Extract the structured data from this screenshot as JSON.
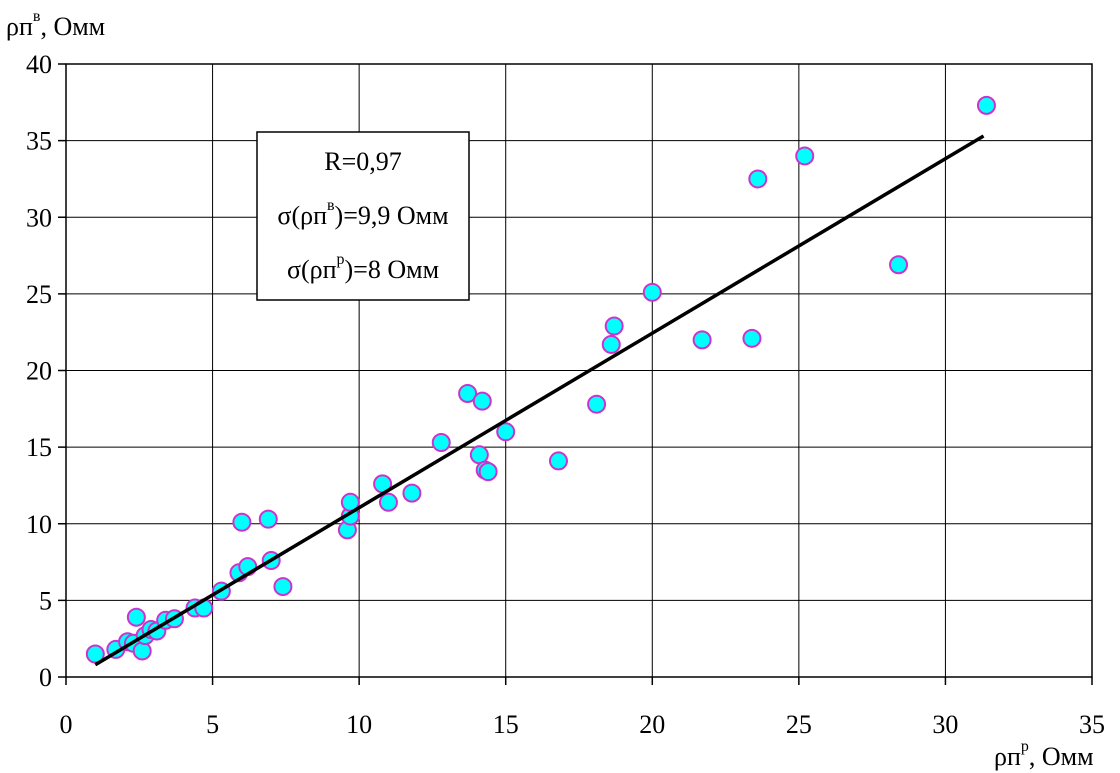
{
  "chart_data": {
    "type": "scatter",
    "x_axis": {
      "label_base": "ρп",
      "label_sup": "р",
      "label_unit": ", Омм",
      "range": [
        0,
        35
      ],
      "ticks": [
        "0",
        "5",
        "10",
        "15",
        "20",
        "25",
        "30",
        "35"
      ]
    },
    "y_axis": {
      "label_base": "ρп",
      "label_sup": "в",
      "label_unit": ", Омм",
      "range": [
        0,
        40
      ],
      "ticks": [
        "0",
        "5",
        "10",
        "15",
        "20",
        "25",
        "30",
        "35",
        "40"
      ]
    },
    "grid": true,
    "annotation": {
      "r_line": "R=0,97",
      "sigma_v": {
        "pre": "σ(ρп",
        "sup": "в",
        "post": ")=9,9 Омм"
      },
      "sigma_p": {
        "pre": "σ(ρп",
        "sup": "р",
        "post": ")=8 Омм"
      }
    },
    "points": [
      {
        "x": 1.0,
        "y": 1.5
      },
      {
        "x": 1.7,
        "y": 1.8
      },
      {
        "x": 2.1,
        "y": 2.3
      },
      {
        "x": 2.3,
        "y": 2.2
      },
      {
        "x": 2.4,
        "y": 3.9
      },
      {
        "x": 2.6,
        "y": 1.7
      },
      {
        "x": 2.7,
        "y": 2.7
      },
      {
        "x": 2.9,
        "y": 3.1
      },
      {
        "x": 3.1,
        "y": 3.0
      },
      {
        "x": 3.4,
        "y": 3.7
      },
      {
        "x": 3.7,
        "y": 3.8
      },
      {
        "x": 4.4,
        "y": 4.5
      },
      {
        "x": 4.7,
        "y": 4.5
      },
      {
        "x": 5.3,
        "y": 5.6
      },
      {
        "x": 5.9,
        "y": 6.8
      },
      {
        "x": 6.0,
        "y": 10.1
      },
      {
        "x": 6.2,
        "y": 7.2
      },
      {
        "x": 6.9,
        "y": 10.3
      },
      {
        "x": 7.0,
        "y": 7.6
      },
      {
        "x": 7.4,
        "y": 5.9
      },
      {
        "x": 9.6,
        "y": 9.6
      },
      {
        "x": 9.7,
        "y": 10.5
      },
      {
        "x": 9.7,
        "y": 11.4
      },
      {
        "x": 10.8,
        "y": 12.6
      },
      {
        "x": 11.0,
        "y": 11.4
      },
      {
        "x": 11.8,
        "y": 12.0
      },
      {
        "x": 12.8,
        "y": 15.3
      },
      {
        "x": 13.7,
        "y": 18.5
      },
      {
        "x": 14.1,
        "y": 14.5
      },
      {
        "x": 14.2,
        "y": 18.0
      },
      {
        "x": 14.3,
        "y": 13.5
      },
      {
        "x": 14.4,
        "y": 13.4
      },
      {
        "x": 15.0,
        "y": 16.0
      },
      {
        "x": 16.8,
        "y": 14.1
      },
      {
        "x": 18.1,
        "y": 17.8
      },
      {
        "x": 18.6,
        "y": 21.7
      },
      {
        "x": 18.7,
        "y": 22.9
      },
      {
        "x": 20.0,
        "y": 25.1
      },
      {
        "x": 21.7,
        "y": 22.0
      },
      {
        "x": 23.4,
        "y": 22.1
      },
      {
        "x": 23.6,
        "y": 32.5
      },
      {
        "x": 25.2,
        "y": 34.0
      },
      {
        "x": 28.4,
        "y": 26.9
      },
      {
        "x": 31.4,
        "y": 37.3
      }
    ],
    "trendline": {
      "x": [
        1.0,
        31.3
      ],
      "y": [
        0.8,
        35.3
      ]
    },
    "colors": {
      "marker_fill": "#00FFFF",
      "marker_stroke": "#CC33CC",
      "line": "#000000",
      "grid": "#000000"
    }
  }
}
